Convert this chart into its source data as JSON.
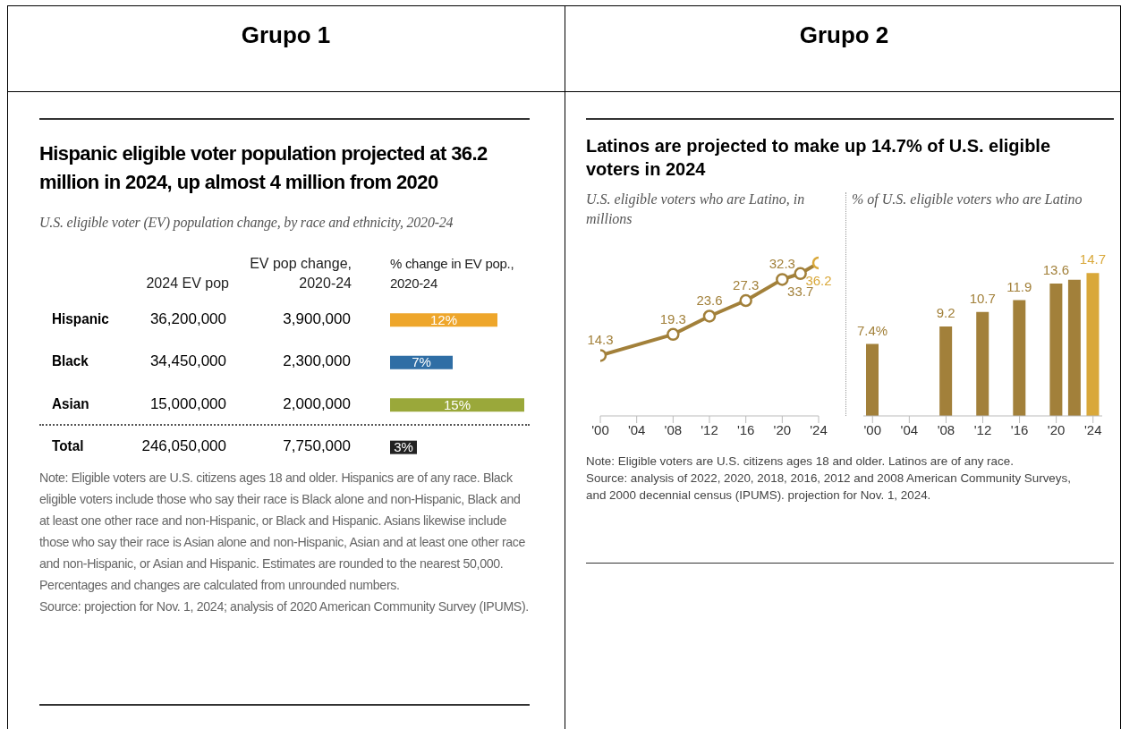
{
  "chart_data": [
    {
      "type": "other",
      "annotations": [
        "Grupo 1",
        "Grupo 2"
      ]
    },
    {
      "type": "bar",
      "orientation": "horizontal",
      "title": "Hispanic eligible voter population projected at 36.2 million in 2024, up almost 4 million from 2020",
      "subtitle": "U.S. eligible voter (EV) population change, by race and ethnicity, 2020-24",
      "xlabel": "% change in EV pop., 2020-24",
      "categories": [
        "Hispanic",
        "Black",
        "Asian",
        "Total"
      ],
      "values": [
        12,
        7,
        15,
        3
      ],
      "colors": [
        "#eea62b",
        "#2f6ea5",
        "#9aa83a",
        "#222222"
      ],
      "value_labels": [
        "12%",
        "7%",
        "15%",
        "3%"
      ],
      "xlim": [
        0,
        15
      ],
      "annotations": [
        "2024 EV pop",
        "EV pop change, 2020-24",
        "36,200,000",
        "3,900,000",
        "34,450,000",
        "2,300,000",
        "15,000,000",
        "2,000,000",
        "246,050,000",
        "7,750,000",
        "Note: Eligible voters are U.S. citizens ages 18 and older. Hispanics are of any race. Black eligible voters include those who say their race is Black alone and non-Hispanic, Black and at least one other race and non-Hispanic, or Black and Hispanic. Asians likewise include those who say their race is Asian alone and non-Hispanic, Asian and at least one other race and non-Hispanic, or Asian and Hispanic. Estimates are rounded to the nearest 50,000. Percentages and changes are calculated from unrounded numbers.",
        "Source: projection for Nov. 1, 2024; analysis of 2020 American Community Survey (IPUMS)."
      ]
    },
    {
      "type": "line",
      "title": "Latinos are projected to make up 14.7% of U.S. eligible voters in 2024",
      "subtitle": "U.S. eligible voters who are Latino, in millions",
      "x": [
        2000,
        2008,
        2012,
        2016,
        2020,
        2022,
        2024
      ],
      "series": [
        {
          "color": "#a2803a",
          "colors": [
            "#a2803a",
            "#a2803a",
            "#a2803a",
            "#a2803a",
            "#a2803a",
            "#a2803a",
            "#d9a83a"
          ],
          "values": [
            14.3,
            19.3,
            23.6,
            27.3,
            32.3,
            33.7,
            36.2
          ]
        }
      ],
      "xlim": [
        2000,
        2024
      ],
      "xticks": [
        {
          "value": 2000,
          "label": "'00"
        },
        {
          "value": 2004,
          "label": "'04"
        },
        {
          "value": 2008,
          "label": "'08"
        },
        {
          "value": 2012,
          "label": "'12"
        },
        {
          "value": 2016,
          "label": "'16"
        },
        {
          "value": 2020,
          "label": "'20"
        },
        {
          "value": 2024,
          "label": "'24"
        }
      ],
      "data_labels": true,
      "marker": "circle",
      "annotations": [
        "Note: Eligible voters are U.S. citizens ages 18 and older. Latinos are of any race.",
        "Source: analysis of 2022, 2020, 2018, 2016, 2012 and 2008 American Community Surveys, and 2000 decennial census (IPUMS). projection for Nov. 1, 2024."
      ]
    },
    {
      "type": "bar",
      "subtitle": "% of U.S. eligible voters who are Latino",
      "x": [
        2000,
        2008,
        2012,
        2016,
        2020,
        2022,
        2024
      ],
      "values": [
        7.4,
        9.2,
        10.7,
        11.9,
        13.6,
        14.0,
        14.7
      ],
      "colors": [
        "#a2803a",
        "#a2803a",
        "#a2803a",
        "#a2803a",
        "#a2803a",
        "#a2803a",
        "#d9a83a"
      ],
      "value_labels": [
        "7.4%",
        "9.2",
        "10.7",
        "11.9",
        "13.6",
        null,
        "14.7"
      ],
      "xlim": [
        1999,
        2025
      ],
      "xticks": [
        {
          "value": 2000,
          "label": "'00"
        },
        {
          "value": 2004,
          "label": "'04"
        },
        {
          "value": 2008,
          "label": "'08"
        },
        {
          "value": 2012,
          "label": "'12"
        },
        {
          "value": 2016,
          "label": "'16"
        },
        {
          "value": 2020,
          "label": "'20"
        },
        {
          "value": 2024,
          "label": "'24"
        }
      ]
    }
  ]
}
